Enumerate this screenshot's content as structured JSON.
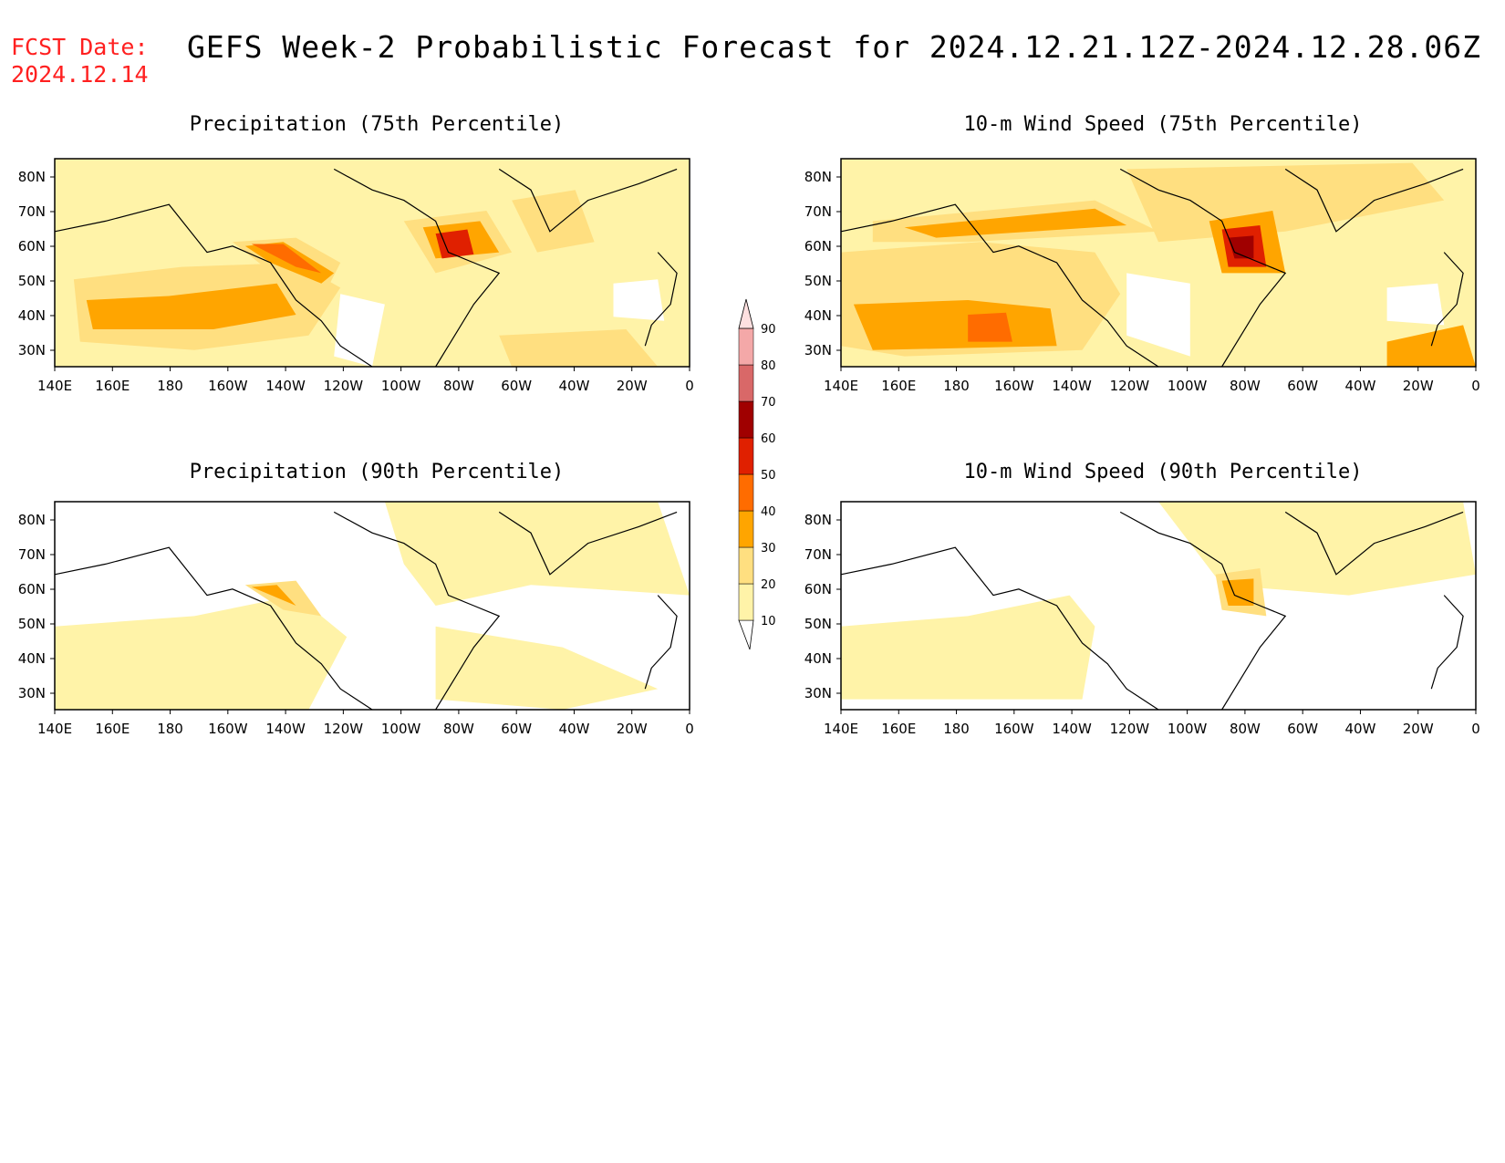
{
  "header": {
    "fcst_label": "FCST Date:",
    "fcst_date": "2024.12.14",
    "title": "GEFS Week-2 Probabilistic Forecast for 2024.12.21.12Z-2024.12.28.06Z"
  },
  "axes": {
    "x_ticks": [
      "140E",
      "160E",
      "180",
      "160W",
      "140W",
      "120W",
      "100W",
      "80W",
      "60W",
      "40W",
      "20W",
      "0"
    ],
    "y_ticks": [
      "80N",
      "70N",
      "60N",
      "50N",
      "40N",
      "30N"
    ]
  },
  "colorbar": {
    "levels": [
      "10",
      "20",
      "30",
      "40",
      "50",
      "60",
      "70",
      "80",
      "90"
    ],
    "colors": [
      "#ffffff",
      "#fff3a8",
      "#ffdf80",
      "#ffa500",
      "#ff6c00",
      "#e02000",
      "#a00000",
      "#d96868",
      "#f4a8a8",
      "#fde0e0"
    ]
  },
  "panels": [
    {
      "id": "precip-75",
      "title": "Precipitation (75th Percentile)"
    },
    {
      "id": "wind-75",
      "title": "10-m Wind Speed (75th Percentile)"
    },
    {
      "id": "precip-90",
      "title": "Precipitation (90th Percentile)"
    },
    {
      "id": "wind-90",
      "title": "10-m Wind Speed (90th Percentile)"
    }
  ]
}
